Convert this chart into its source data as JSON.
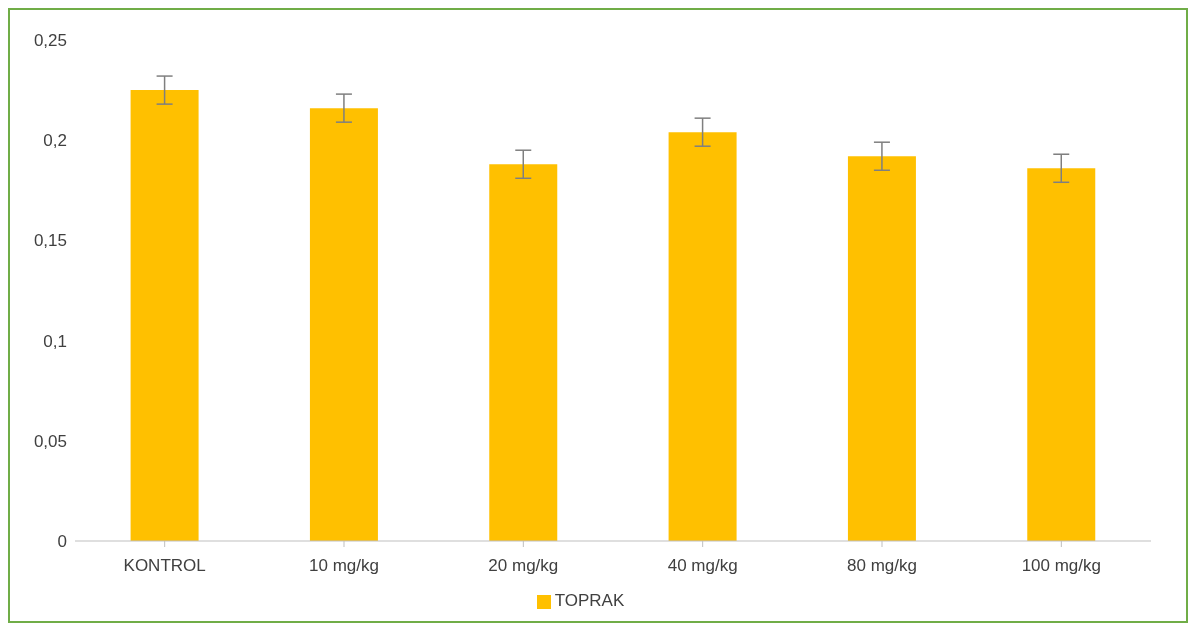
{
  "chart_data": {
    "type": "bar",
    "categories": [
      "KONTROL",
      "10 mg/kg",
      "20 mg/kg",
      "40 mg/kg",
      "80 mg/kg",
      "100 mg/kg"
    ],
    "series": [
      {
        "name": "TOPRAK",
        "color": "#ffc000",
        "values": [
          0.225,
          0.216,
          0.188,
          0.204,
          0.192,
          0.186
        ],
        "errors": [
          0.007,
          0.007,
          0.007,
          0.007,
          0.007,
          0.007
        ]
      }
    ],
    "ylim": [
      0,
      0.25
    ],
    "yticks": [
      {
        "value": 0,
        "label": "0"
      },
      {
        "value": 0.05,
        "label": "0,05"
      },
      {
        "value": 0.1,
        "label": "0,1"
      },
      {
        "value": 0.15,
        "label": "0,15"
      },
      {
        "value": 0.2,
        "label": "0,2"
      },
      {
        "value": 0.25,
        "label": "0,25"
      }
    ],
    "grid": false,
    "legend": "bottom"
  }
}
